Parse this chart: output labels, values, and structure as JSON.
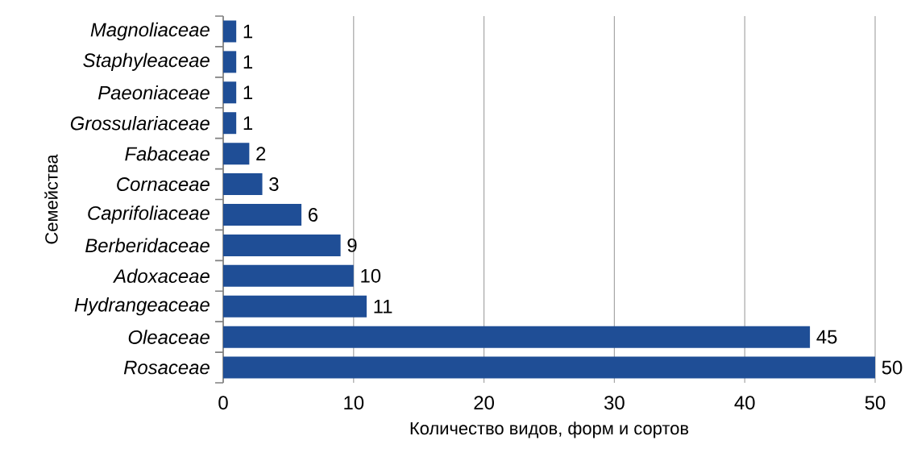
{
  "chart_data": {
    "type": "bar",
    "orientation": "horizontal",
    "categories": [
      "Magnoliaceae",
      "Staphyleaceae",
      "Paeoniaceae",
      "Grossulariaceae",
      "Fabaceae",
      "Cornaceae",
      "Caprifoliaceae",
      "Berberidaceae",
      "Adoxaceae",
      "Hydrangeaceae",
      "Oleaceae",
      "Rosaceae"
    ],
    "values": [
      1,
      1,
      1,
      1,
      2,
      3,
      6,
      9,
      10,
      11,
      45,
      50
    ],
    "color": "#1f4e96",
    "xlim": [
      0,
      50
    ],
    "xticks": [
      0,
      10,
      20,
      30,
      40,
      50
    ],
    "grid": "x",
    "data_labels": true,
    "xlabel": "Количество видов, форм и сортов",
    "ylabel": "Семейства"
  }
}
